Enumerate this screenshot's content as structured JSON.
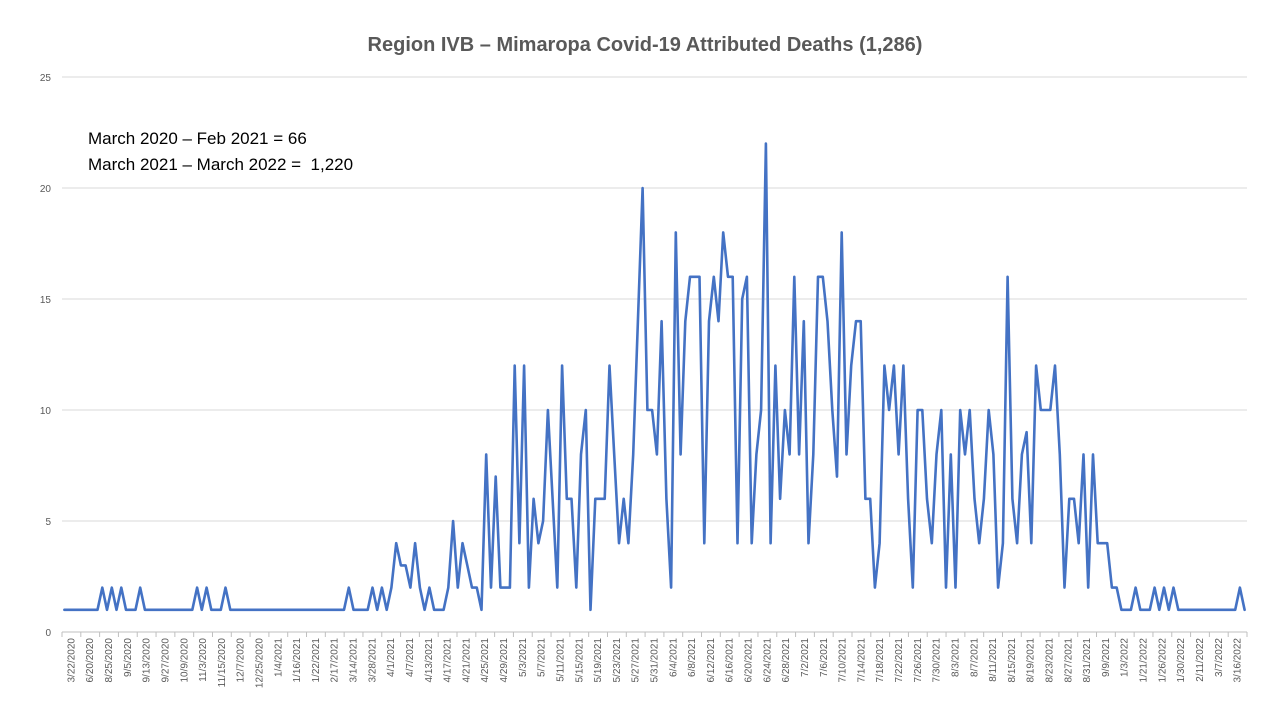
{
  "chart_data": {
    "type": "line",
    "title": "Region IVB – Mimaropa Covid-19 Attributed Deaths (1,286)",
    "annotations": [
      "March 2020 – Feb 2021 = 66",
      "March 2021 – March 2022 =  1,220"
    ],
    "xlabel": "",
    "ylabel": "",
    "ylim": [
      0,
      25
    ],
    "yticks": [
      0,
      5,
      10,
      15,
      20,
      25
    ],
    "grid": true,
    "legend": "none",
    "line_color": "#4472C4",
    "x_tick_labels": [
      "3/22/2020",
      "6/20/2020",
      "8/25/2020",
      "9/5/2020",
      "9/13/2020",
      "9/27/2020",
      "10/9/2020",
      "11/3/2020",
      "11/15/2020",
      "12/7/2020",
      "12/25/2020",
      "1/4/2021",
      "1/16/2021",
      "1/22/2021",
      "2/17/2021",
      "3/14/2021",
      "3/28/2021",
      "4/1/2021",
      "4/7/2021",
      "4/13/2021",
      "4/17/2021",
      "4/21/2021",
      "4/25/2021",
      "4/29/2021",
      "5/3/2021",
      "5/7/2021",
      "5/11/2021",
      "5/15/2021",
      "5/19/2021",
      "5/23/2021",
      "5/27/2021",
      "5/31/2021",
      "6/4/2021",
      "6/8/2021",
      "6/12/2021",
      "6/16/2021",
      "6/20/2021",
      "6/24/2021",
      "6/28/2021",
      "7/2/2021",
      "7/6/2021",
      "7/10/2021",
      "7/14/2021",
      "7/18/2021",
      "7/22/2021",
      "7/26/2021",
      "7/30/2021",
      "8/3/2021",
      "8/7/2021",
      "8/11/2021",
      "8/15/2021",
      "8/19/2021",
      "8/23/2021",
      "8/27/2021",
      "8/31/2021",
      "9/9/2021",
      "1/3/2022",
      "1/21/2022",
      "1/26/2022",
      "1/30/2022",
      "2/11/2022",
      "3/7/2022",
      "3/16/2022"
    ],
    "values": [
      1,
      1,
      1,
      1,
      1,
      1,
      1,
      1,
      2,
      1,
      2,
      1,
      2,
      1,
      1,
      1,
      2,
      1,
      1,
      1,
      1,
      1,
      1,
      1,
      1,
      1,
      1,
      1,
      2,
      1,
      2,
      1,
      1,
      1,
      2,
      1,
      1,
      1,
      1,
      1,
      1,
      1,
      1,
      1,
      1,
      1,
      1,
      1,
      1,
      1,
      1,
      1,
      1,
      1,
      1,
      1,
      1,
      1,
      1,
      1,
      2,
      1,
      1,
      1,
      1,
      2,
      1,
      2,
      1,
      2,
      4,
      3,
      3,
      2,
      4,
      2,
      1,
      2,
      1,
      1,
      1,
      2,
      5,
      2,
      4,
      3,
      2,
      2,
      1,
      8,
      2,
      7,
      2,
      2,
      2,
      12,
      4,
      12,
      2,
      6,
      4,
      5,
      10,
      6,
      2,
      12,
      6,
      6,
      2,
      8,
      10,
      1,
      6,
      6,
      6,
      12,
      8,
      4,
      6,
      4,
      8,
      14,
      20,
      10,
      10,
      8,
      14,
      6,
      2,
      18,
      8,
      14,
      16,
      16,
      16,
      4,
      14,
      16,
      14,
      18,
      16,
      16,
      4,
      15,
      16,
      4,
      8,
      10,
      22,
      4,
      12,
      6,
      10,
      8,
      16,
      8,
      14,
      4,
      8,
      16,
      16,
      14,
      10,
      7,
      18,
      8,
      12,
      14,
      14,
      6,
      6,
      2,
      4,
      12,
      10,
      12,
      8,
      12,
      6,
      2,
      10,
      10,
      6,
      4,
      8,
      10,
      2,
      8,
      2,
      10,
      8,
      10,
      6,
      4,
      6,
      10,
      8,
      2,
      4,
      16,
      6,
      4,
      8,
      9,
      4,
      12,
      10,
      10,
      10,
      12,
      8,
      2,
      6,
      6,
      4,
      8,
      2,
      8,
      4,
      4,
      4,
      2,
      2,
      1,
      1,
      1,
      2,
      1,
      1,
      1,
      2,
      1,
      2,
      1,
      2,
      1,
      1,
      1,
      1,
      1,
      1,
      1,
      1,
      1,
      1,
      1,
      1,
      1,
      2,
      1
    ]
  }
}
